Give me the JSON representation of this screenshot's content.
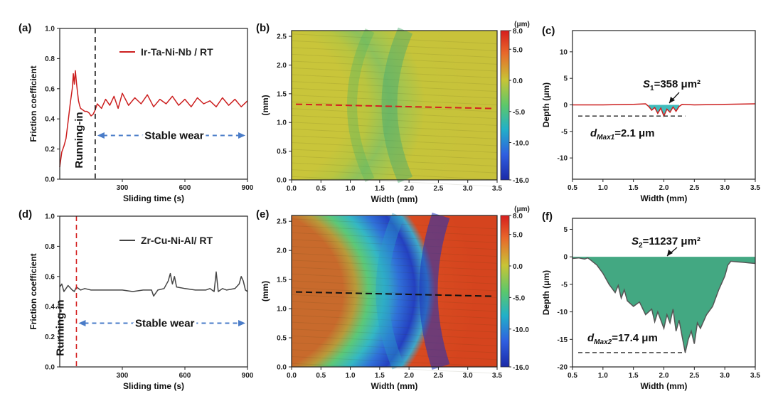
{
  "chart_data": [
    {
      "id": "a",
      "panel_label": "(a)",
      "type": "line",
      "xlabel": "Sliding time (s)",
      "ylabel": "Friction coefficient",
      "xlim": [
        0,
        900
      ],
      "ylim": [
        0.0,
        1.0
      ],
      "xticks": [
        "300",
        "600",
        "900"
      ],
      "yticks": [
        "0.0",
        "0.2",
        "0.4",
        "0.6",
        "0.8",
        "1.0"
      ],
      "series": [
        {
          "name": "Ir-Ta-Ni-Nb / RT",
          "color": "#cc1f1f",
          "x": [
            0,
            10,
            20,
            30,
            40,
            50,
            60,
            65,
            70,
            75,
            80,
            85,
            90,
            95,
            100,
            110,
            120,
            130,
            140,
            150,
            160,
            170,
            180,
            200,
            220,
            240,
            260,
            280,
            300,
            330,
            360,
            390,
            420,
            450,
            480,
            510,
            540,
            570,
            600,
            630,
            660,
            690,
            720,
            750,
            780,
            810,
            840,
            870,
            900
          ],
          "y": [
            0.08,
            0.18,
            0.22,
            0.27,
            0.38,
            0.5,
            0.6,
            0.7,
            0.63,
            0.72,
            0.64,
            0.58,
            0.52,
            0.49,
            0.47,
            0.46,
            0.45,
            0.45,
            0.44,
            0.42,
            0.43,
            0.46,
            0.5,
            0.47,
            0.53,
            0.49,
            0.55,
            0.47,
            0.57,
            0.49,
            0.54,
            0.5,
            0.56,
            0.48,
            0.53,
            0.5,
            0.55,
            0.49,
            0.53,
            0.48,
            0.54,
            0.5,
            0.52,
            0.48,
            0.54,
            0.49,
            0.53,
            0.48,
            0.52
          ]
        }
      ],
      "annotations": [
        {
          "text": "Running-in",
          "at_x": 170
        },
        {
          "text": "Stable wear"
        }
      ]
    },
    {
      "id": "b",
      "panel_label": "(b)",
      "type": "heatmap",
      "xlabel": "Width (mm)",
      "ylabel": "(mm)",
      "xlim": [
        0,
        3.5
      ],
      "ylim": [
        0,
        2.6
      ],
      "xticks": [
        "0.0",
        "0.5",
        "1.0",
        "1.5",
        "2.0",
        "2.5",
        "3.0",
        "3.5"
      ],
      "yticks": [
        "0.0",
        "0.5",
        "1.0",
        "1.5",
        "2.0",
        "2.5"
      ],
      "colorbar": {
        "unit": "(μm)",
        "ticks": [
          "8.0",
          "5.0",
          "0.0",
          "-5.0",
          "-10.0",
          "-16.0"
        ],
        "range": [
          -16,
          8
        ]
      },
      "profile_line_y": 1.28,
      "profile_line_color": "#d42020"
    },
    {
      "id": "c",
      "panel_label": "(c)",
      "type": "line",
      "xlabel": "Width (mm)",
      "ylabel": "Depth (μm)",
      "xlim": [
        0.5,
        3.5
      ],
      "ylim": [
        -14,
        14
      ],
      "xticks": [
        "0.5",
        "1.0",
        "1.5",
        "2.0",
        "2.5",
        "3.0",
        "3.5"
      ],
      "yticks": [
        "10",
        "5",
        "0",
        "-5",
        "-10"
      ],
      "series": [
        {
          "color": "#cc1f1f",
          "x": [
            0.5,
            1.0,
            1.5,
            1.7,
            1.75,
            1.8,
            1.85,
            1.9,
            1.95,
            2.0,
            2.05,
            2.1,
            2.15,
            2.2,
            2.25,
            2.3,
            2.5,
            3.0,
            3.5
          ],
          "y": [
            0,
            0,
            0.1,
            0.2,
            -0.3,
            -1.0,
            -0.5,
            -1.6,
            -0.6,
            -2.1,
            -0.8,
            -1.4,
            -0.4,
            -1.2,
            -0.3,
            0.1,
            0,
            0.1,
            0.2
          ]
        }
      ],
      "area_fill": "#2bb5b5",
      "annotations": [
        {
          "label": "S",
          "sub": "1",
          "text": "=358 μm²"
        },
        {
          "label": "d",
          "sub": "Max1",
          "text": "=2.1 μm",
          "at_y": -2.1
        }
      ]
    },
    {
      "id": "d",
      "panel_label": "(d)",
      "type": "line",
      "xlabel": "Sliding time (s)",
      "ylabel": "Friction coefficient",
      "xlim": [
        0,
        900
      ],
      "ylim": [
        0.0,
        1.0
      ],
      "xticks": [
        "300",
        "600",
        "900"
      ],
      "yticks": [
        "0.0",
        "0.2",
        "0.4",
        "0.6",
        "0.8",
        "1.0"
      ],
      "series": [
        {
          "name": "Zr-Cu-Ni-Al/ RT",
          "color": "#444444",
          "x": [
            0,
            10,
            20,
            30,
            40,
            60,
            70,
            80,
            100,
            120,
            150,
            200,
            250,
            300,
            350,
            400,
            440,
            450,
            470,
            500,
            520,
            530,
            540,
            550,
            560,
            600,
            650,
            700,
            720,
            740,
            750,
            760,
            780,
            800,
            840,
            860,
            870,
            880,
            890,
            900
          ],
          "y": [
            0.53,
            0.55,
            0.5,
            0.52,
            0.54,
            0.51,
            0.5,
            0.53,
            0.51,
            0.52,
            0.51,
            0.51,
            0.51,
            0.51,
            0.5,
            0.51,
            0.51,
            0.47,
            0.51,
            0.52,
            0.57,
            0.62,
            0.55,
            0.6,
            0.53,
            0.52,
            0.51,
            0.51,
            0.52,
            0.5,
            0.63,
            0.5,
            0.52,
            0.51,
            0.52,
            0.55,
            0.6,
            0.57,
            0.51,
            0.5
          ]
        }
      ],
      "annotations": [
        {
          "text": "Running-in",
          "at_x": 80
        },
        {
          "text": "Stable wear"
        }
      ]
    },
    {
      "id": "e",
      "panel_label": "(e)",
      "type": "heatmap",
      "xlabel": "Width (mm)",
      "ylabel": "(mm)",
      "xlim": [
        0,
        3.5
      ],
      "ylim": [
        0,
        2.6
      ],
      "xticks": [
        "0.0",
        "0.5",
        "1.0",
        "1.5",
        "2.0",
        "2.5",
        "3.0",
        "3.5"
      ],
      "yticks": [
        "0.0",
        "0.5",
        "1.0",
        "1.5",
        "2.0",
        "2.5"
      ],
      "colorbar": {
        "unit": "(μm)",
        "ticks": [
          "8.0",
          "5.0",
          "0.0",
          "-5.0",
          "-10.0",
          "-16.0"
        ],
        "range": [
          -16,
          8
        ]
      },
      "profile_line_y": 1.25,
      "profile_line_color": "#111111"
    },
    {
      "id": "f",
      "panel_label": "(f)",
      "type": "line",
      "xlabel": "Width (mm)",
      "ylabel": "Depth (μm)",
      "xlim": [
        0.5,
        3.5
      ],
      "ylim": [
        -20,
        7
      ],
      "xticks": [
        "0.5",
        "1.0",
        "1.5",
        "2.0",
        "2.5",
        "3.0",
        "3.5"
      ],
      "yticks": [
        "5",
        "0",
        "-5",
        "-10",
        "-15",
        "-20"
      ],
      "series": [
        {
          "color": "#555555",
          "x": [
            0.5,
            0.6,
            0.7,
            0.75,
            0.8,
            0.9,
            1.0,
            1.1,
            1.2,
            1.25,
            1.3,
            1.35,
            1.4,
            1.5,
            1.6,
            1.7,
            1.8,
            1.85,
            1.9,
            2.0,
            2.05,
            2.1,
            2.15,
            2.2,
            2.25,
            2.3,
            2.35,
            2.4,
            2.45,
            2.5,
            2.55,
            2.6,
            2.7,
            2.8,
            2.9,
            3.0,
            3.05,
            3.1,
            3.2,
            3.3,
            3.4,
            3.5
          ],
          "y": [
            -0.3,
            -0.2,
            -0.4,
            -0.2,
            -0.6,
            -1.5,
            -3.0,
            -5.0,
            -6.5,
            -5.2,
            -7.5,
            -6.0,
            -8.0,
            -9.0,
            -8.2,
            -10.5,
            -9.5,
            -11.8,
            -10.0,
            -13.0,
            -10.5,
            -12.0,
            -9.5,
            -13.5,
            -11.5,
            -14.5,
            -17.4,
            -15.0,
            -13.5,
            -15.8,
            -12.0,
            -13.0,
            -10.5,
            -9.0,
            -6.0,
            -3.5,
            -1.5,
            -0.8,
            -0.9,
            -1.0,
            -1.1,
            -1.2
          ]
        }
      ],
      "area_fill": "#2f9e74",
      "annotations": [
        {
          "label": "S",
          "sub": "2",
          "text": "=11237 μm²"
        },
        {
          "label": "d",
          "sub": "Max2",
          "text": "=17.4 μm",
          "at_y": -17.4
        }
      ]
    }
  ]
}
